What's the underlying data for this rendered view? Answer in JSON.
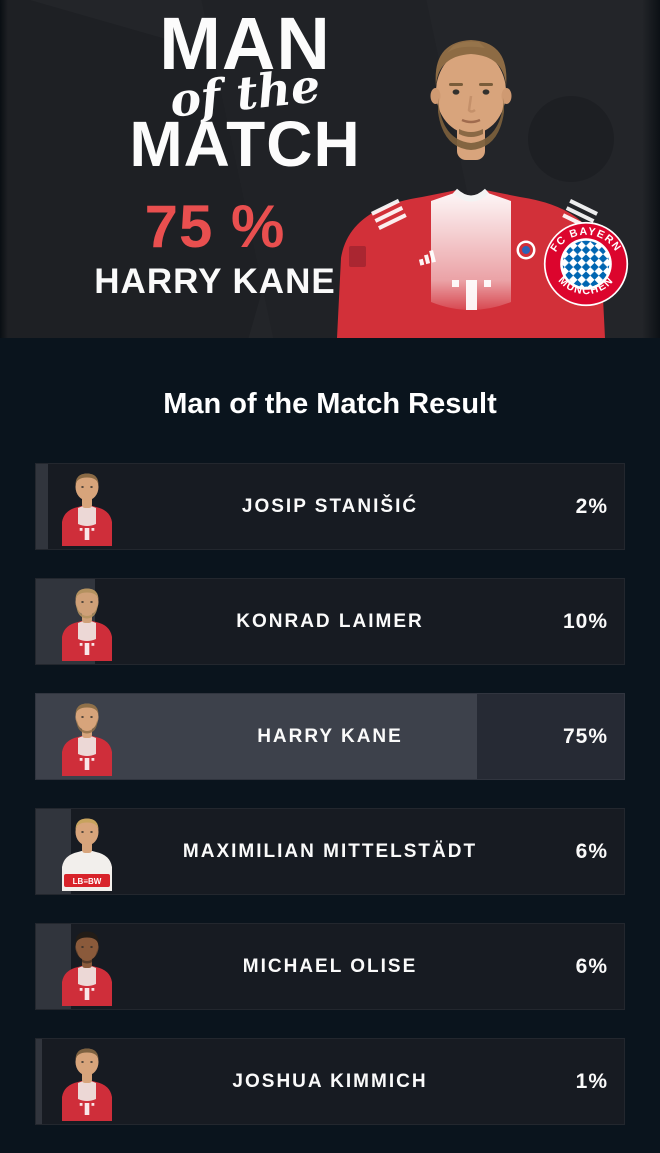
{
  "hero": {
    "title_line1": "MAN",
    "title_line2": "of the",
    "title_line3": "MATCH",
    "percent": "75 %",
    "player": "HARRY KANE",
    "badge": {
      "top": "FC BAYERN",
      "bottom": "MÜNCHEN"
    }
  },
  "results": {
    "heading": "Man of the Match Result",
    "rows": [
      {
        "name": "JOSIP STANIŠIĆ",
        "pct": 2,
        "pct_label": "2%",
        "highlight": false,
        "avatar": {
          "kit": "bayern",
          "colors": {
            "skin": "#d7a47b",
            "hair": "#8a6a45",
            "jersey": "#cf2e3a",
            "chest": "#efe7e4",
            "beardop": "0"
          }
        }
      },
      {
        "name": "KONRAD LAIMER",
        "pct": 10,
        "pct_label": "10%",
        "highlight": false,
        "avatar": {
          "kit": "bayern",
          "colors": {
            "skin": "#cfa078",
            "hair": "#b3915f",
            "jersey": "#cf2e3a",
            "chest": "#efe7e4",
            "beardop": "0.9"
          }
        }
      },
      {
        "name": "HARRY KANE",
        "pct": 75,
        "pct_label": "75%",
        "highlight": true,
        "avatar": {
          "kit": "bayern",
          "colors": {
            "skin": "#d7a47b",
            "hair": "#8f7049",
            "jersey": "#cf2e3a",
            "chest": "#efe7e4",
            "beardop": "0.85"
          }
        }
      },
      {
        "name": "MAXIMILIAN MITTELSTÄDT",
        "pct": 6,
        "pct_label": "6%",
        "highlight": false,
        "avatar": {
          "kit": "stuttgart",
          "band_text": "LB≡BW",
          "colors": {
            "skin": "#d7a47b",
            "hair": "#c7a35e",
            "jersey": "#f2efec",
            "chest": "#f2efec",
            "beardop": "0"
          }
        }
      },
      {
        "name": "MICHAEL OLISE",
        "pct": 6,
        "pct_label": "6%",
        "highlight": false,
        "avatar": {
          "kit": "bayern",
          "colors": {
            "skin": "#8a5a3b",
            "hair": "#221c17",
            "jersey": "#cf2e3a",
            "chest": "#efe7e4",
            "beardop": "0.5"
          }
        }
      },
      {
        "name": "JOSHUA KIMMICH",
        "pct": 1,
        "pct_label": "1%",
        "highlight": false,
        "avatar": {
          "kit": "bayern",
          "colors": {
            "skin": "#d7a47b",
            "hair": "#7d6140",
            "jersey": "#cf2e3a",
            "chest": "#efe7e4",
            "beardop": "0"
          }
        }
      }
    ]
  },
  "colors": {
    "accent_red": "#e94f4f",
    "page_bg": "#0a141d",
    "hero_bg": "#232529",
    "row_bg": "#171b22",
    "row_fill": "#31353d",
    "highlight_bg": "#262a34",
    "highlight_fill": "#3d414b",
    "badge_red": "#dc052d",
    "badge_blue": "#0066b2"
  }
}
